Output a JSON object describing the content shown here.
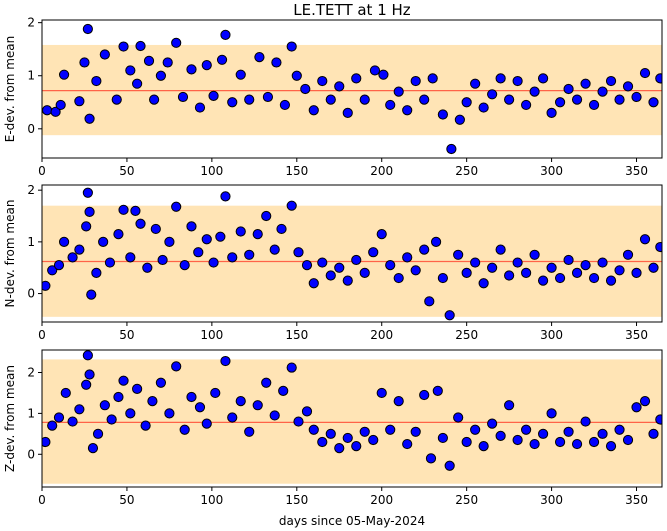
{
  "chart_data": {
    "type": "scatter",
    "title": "LE.TETT at 1 Hz",
    "xlabel": "days since 05-May-2024",
    "xlim": [
      0,
      365
    ],
    "x_ticks": [
      0,
      50,
      100,
      150,
      200,
      250,
      300,
      350
    ],
    "x_tick_labels": [
      "0",
      "50",
      "100",
      "150",
      "200",
      "250",
      "300",
      "350"
    ],
    "marker_color": "#0000ff",
    "marker_edge_color": "#000000",
    "band_color": "#ffe4b5",
    "mean_line_color": "#ff6347",
    "panels": [
      {
        "ylabel": "E-dev. from mean",
        "ylim": [
          -0.55,
          2.05
        ],
        "y_ticks": [
          0,
          1,
          2
        ],
        "y_tick_labels": [
          "0",
          "1",
          "2"
        ],
        "band": [
          -0.12,
          1.58
        ],
        "mean_line": 0.72,
        "points": [
          {
            "x": 27,
            "y": 1.88
          },
          {
            "x": 108,
            "y": 1.77
          },
          {
            "x": 147,
            "y": 1.55
          },
          {
            "x": 48,
            "y": 1.55
          },
          {
            "x": 58,
            "y": 1.56
          },
          {
            "x": 79,
            "y": 1.62
          },
          {
            "x": 241,
            "y": -0.38
          },
          {
            "x": 28,
            "y": 0.19
          },
          {
            "x": 246,
            "y": 0.17
          },
          {
            "x": 236,
            "y": 0.27
          },
          {
            "x": 3,
            "y": 0.35
          },
          {
            "x": 8,
            "y": 0.32
          },
          {
            "x": 11,
            "y": 0.45
          },
          {
            "x": 13,
            "y": 1.02
          },
          {
            "x": 22,
            "y": 0.52
          },
          {
            "x": 25,
            "y": 1.25
          },
          {
            "x": 32,
            "y": 0.9
          },
          {
            "x": 37,
            "y": 1.4
          },
          {
            "x": 44,
            "y": 0.55
          },
          {
            "x": 52,
            "y": 1.1
          },
          {
            "x": 56,
            "y": 0.85
          },
          {
            "x": 63,
            "y": 1.28
          },
          {
            "x": 66,
            "y": 0.55
          },
          {
            "x": 70,
            "y": 1.0
          },
          {
            "x": 74,
            "y": 1.25
          },
          {
            "x": 83,
            "y": 0.6
          },
          {
            "x": 88,
            "y": 1.12
          },
          {
            "x": 93,
            "y": 0.4
          },
          {
            "x": 97,
            "y": 1.2
          },
          {
            "x": 101,
            "y": 0.62
          },
          {
            "x": 106,
            "y": 1.3
          },
          {
            "x": 112,
            "y": 0.5
          },
          {
            "x": 117,
            "y": 1.02
          },
          {
            "x": 122,
            "y": 0.55
          },
          {
            "x": 128,
            "y": 1.35
          },
          {
            "x": 133,
            "y": 0.6
          },
          {
            "x": 138,
            "y": 1.25
          },
          {
            "x": 143,
            "y": 0.45
          },
          {
            "x": 150,
            "y": 1.0
          },
          {
            "x": 155,
            "y": 0.75
          },
          {
            "x": 160,
            "y": 0.35
          },
          {
            "x": 165,
            "y": 0.9
          },
          {
            "x": 170,
            "y": 0.55
          },
          {
            "x": 175,
            "y": 0.8
          },
          {
            "x": 180,
            "y": 0.3
          },
          {
            "x": 185,
            "y": 0.95
          },
          {
            "x": 190,
            "y": 0.55
          },
          {
            "x": 196,
            "y": 1.1
          },
          {
            "x": 201,
            "y": 1.02
          },
          {
            "x": 205,
            "y": 0.45
          },
          {
            "x": 210,
            "y": 0.7
          },
          {
            "x": 215,
            "y": 0.35
          },
          {
            "x": 220,
            "y": 0.9
          },
          {
            "x": 225,
            "y": 0.55
          },
          {
            "x": 230,
            "y": 0.95
          },
          {
            "x": 250,
            "y": 0.5
          },
          {
            "x": 255,
            "y": 0.85
          },
          {
            "x": 260,
            "y": 0.4
          },
          {
            "x": 265,
            "y": 0.65
          },
          {
            "x": 270,
            "y": 0.95
          },
          {
            "x": 275,
            "y": 0.55
          },
          {
            "x": 280,
            "y": 0.9
          },
          {
            "x": 285,
            "y": 0.45
          },
          {
            "x": 290,
            "y": 0.7
          },
          {
            "x": 295,
            "y": 0.95
          },
          {
            "x": 300,
            "y": 0.3
          },
          {
            "x": 305,
            "y": 0.5
          },
          {
            "x": 310,
            "y": 0.75
          },
          {
            "x": 315,
            "y": 0.55
          },
          {
            "x": 320,
            "y": 0.85
          },
          {
            "x": 325,
            "y": 0.45
          },
          {
            "x": 330,
            "y": 0.7
          },
          {
            "x": 335,
            "y": 0.9
          },
          {
            "x": 340,
            "y": 0.55
          },
          {
            "x": 345,
            "y": 0.8
          },
          {
            "x": 350,
            "y": 0.6
          },
          {
            "x": 355,
            "y": 1.05
          },
          {
            "x": 360,
            "y": 0.5
          },
          {
            "x": 364,
            "y": 0.95
          }
        ]
      },
      {
        "ylabel": "N-dev. from mean",
        "ylim": [
          -0.55,
          2.1
        ],
        "y_ticks": [
          0,
          1,
          2
        ],
        "y_tick_labels": [
          "0",
          "1",
          "2"
        ],
        "band": [
          -0.45,
          1.7
        ],
        "mean_line": 0.62,
        "points": [
          {
            "x": 27,
            "y": 1.95
          },
          {
            "x": 108,
            "y": 1.88
          },
          {
            "x": 147,
            "y": 1.7
          },
          {
            "x": 28,
            "y": 1.58
          },
          {
            "x": 48,
            "y": 1.62
          },
          {
            "x": 55,
            "y": 1.6
          },
          {
            "x": 79,
            "y": 1.68
          },
          {
            "x": 240,
            "y": -0.42
          },
          {
            "x": 29,
            "y": -0.02
          },
          {
            "x": 228,
            "y": -0.15
          },
          {
            "x": 2,
            "y": 0.15
          },
          {
            "x": 6,
            "y": 0.45
          },
          {
            "x": 10,
            "y": 0.55
          },
          {
            "x": 13,
            "y": 1.0
          },
          {
            "x": 18,
            "y": 0.7
          },
          {
            "x": 22,
            "y": 0.85
          },
          {
            "x": 26,
            "y": 1.3
          },
          {
            "x": 32,
            "y": 0.4
          },
          {
            "x": 36,
            "y": 1.0
          },
          {
            "x": 40,
            "y": 0.6
          },
          {
            "x": 45,
            "y": 1.15
          },
          {
            "x": 52,
            "y": 0.7
          },
          {
            "x": 58,
            "y": 1.35
          },
          {
            "x": 62,
            "y": 0.5
          },
          {
            "x": 67,
            "y": 1.25
          },
          {
            "x": 71,
            "y": 0.65
          },
          {
            "x": 75,
            "y": 1.0
          },
          {
            "x": 84,
            "y": 0.55
          },
          {
            "x": 88,
            "y": 1.3
          },
          {
            "x": 92,
            "y": 0.8
          },
          {
            "x": 97,
            "y": 1.05
          },
          {
            "x": 101,
            "y": 0.6
          },
          {
            "x": 105,
            "y": 1.1
          },
          {
            "x": 112,
            "y": 0.7
          },
          {
            "x": 117,
            "y": 1.2
          },
          {
            "x": 122,
            "y": 0.75
          },
          {
            "x": 127,
            "y": 1.15
          },
          {
            "x": 132,
            "y": 1.5
          },
          {
            "x": 137,
            "y": 0.85
          },
          {
            "x": 141,
            "y": 1.25
          },
          {
            "x": 151,
            "y": 0.8
          },
          {
            "x": 156,
            "y": 0.55
          },
          {
            "x": 160,
            "y": 0.2
          },
          {
            "x": 165,
            "y": 0.6
          },
          {
            "x": 170,
            "y": 0.35
          },
          {
            "x": 175,
            "y": 0.5
          },
          {
            "x": 180,
            "y": 0.25
          },
          {
            "x": 185,
            "y": 0.65
          },
          {
            "x": 190,
            "y": 0.4
          },
          {
            "x": 195,
            "y": 0.8
          },
          {
            "x": 200,
            "y": 1.15
          },
          {
            "x": 205,
            "y": 0.55
          },
          {
            "x": 210,
            "y": 0.3
          },
          {
            "x": 215,
            "y": 0.7
          },
          {
            "x": 220,
            "y": 0.45
          },
          {
            "x": 225,
            "y": 0.85
          },
          {
            "x": 232,
            "y": 1.0
          },
          {
            "x": 236,
            "y": 0.3
          },
          {
            "x": 245,
            "y": 0.75
          },
          {
            "x": 250,
            "y": 0.4
          },
          {
            "x": 255,
            "y": 0.6
          },
          {
            "x": 260,
            "y": 0.2
          },
          {
            "x": 265,
            "y": 0.5
          },
          {
            "x": 270,
            "y": 0.85
          },
          {
            "x": 275,
            "y": 0.35
          },
          {
            "x": 280,
            "y": 0.6
          },
          {
            "x": 285,
            "y": 0.4
          },
          {
            "x": 290,
            "y": 0.75
          },
          {
            "x": 295,
            "y": 0.25
          },
          {
            "x": 300,
            "y": 0.5
          },
          {
            "x": 305,
            "y": 0.3
          },
          {
            "x": 310,
            "y": 0.65
          },
          {
            "x": 315,
            "y": 0.4
          },
          {
            "x": 320,
            "y": 0.55
          },
          {
            "x": 325,
            "y": 0.3
          },
          {
            "x": 330,
            "y": 0.6
          },
          {
            "x": 335,
            "y": 0.25
          },
          {
            "x": 340,
            "y": 0.45
          },
          {
            "x": 345,
            "y": 0.75
          },
          {
            "x": 350,
            "y": 0.4
          },
          {
            "x": 355,
            "y": 1.05
          },
          {
            "x": 360,
            "y": 0.5
          },
          {
            "x": 364,
            "y": 0.9
          }
        ]
      },
      {
        "ylabel": "Z-dev. from mean",
        "ylim": [
          -0.8,
          2.55
        ],
        "y_ticks": [
          0,
          1,
          2
        ],
        "y_tick_labels": [
          "0",
          "1",
          "2"
        ],
        "band": [
          -0.72,
          2.32
        ],
        "mean_line": 0.78,
        "points": [
          {
            "x": 27,
            "y": 2.42
          },
          {
            "x": 108,
            "y": 2.28
          },
          {
            "x": 147,
            "y": 2.12
          },
          {
            "x": 79,
            "y": 2.15
          },
          {
            "x": 28,
            "y": 1.95
          },
          {
            "x": 48,
            "y": 1.8
          },
          {
            "x": 240,
            "y": -0.28
          },
          {
            "x": 229,
            "y": -0.1
          },
          {
            "x": 30,
            "y": 0.15
          },
          {
            "x": 2,
            "y": 0.3
          },
          {
            "x": 6,
            "y": 0.7
          },
          {
            "x": 10,
            "y": 0.9
          },
          {
            "x": 14,
            "y": 1.5
          },
          {
            "x": 18,
            "y": 0.8
          },
          {
            "x": 22,
            "y": 1.1
          },
          {
            "x": 26,
            "y": 1.7
          },
          {
            "x": 33,
            "y": 0.5
          },
          {
            "x": 37,
            "y": 1.2
          },
          {
            "x": 41,
            "y": 0.85
          },
          {
            "x": 45,
            "y": 1.4
          },
          {
            "x": 52,
            "y": 1.0
          },
          {
            "x": 56,
            "y": 1.6
          },
          {
            "x": 61,
            "y": 0.7
          },
          {
            "x": 65,
            "y": 1.3
          },
          {
            "x": 70,
            "y": 1.75
          },
          {
            "x": 75,
            "y": 1.0
          },
          {
            "x": 84,
            "y": 0.6
          },
          {
            "x": 88,
            "y": 1.4
          },
          {
            "x": 93,
            "y": 1.15
          },
          {
            "x": 97,
            "y": 0.75
          },
          {
            "x": 102,
            "y": 1.5
          },
          {
            "x": 112,
            "y": 0.9
          },
          {
            "x": 117,
            "y": 1.3
          },
          {
            "x": 122,
            "y": 0.55
          },
          {
            "x": 127,
            "y": 1.2
          },
          {
            "x": 132,
            "y": 1.75
          },
          {
            "x": 137,
            "y": 0.95
          },
          {
            "x": 142,
            "y": 1.55
          },
          {
            "x": 151,
            "y": 0.8
          },
          {
            "x": 156,
            "y": 1.05
          },
          {
            "x": 160,
            "y": 0.6
          },
          {
            "x": 165,
            "y": 0.3
          },
          {
            "x": 170,
            "y": 0.5
          },
          {
            "x": 175,
            "y": 0.15
          },
          {
            "x": 180,
            "y": 0.4
          },
          {
            "x": 185,
            "y": 0.2
          },
          {
            "x": 190,
            "y": 0.55
          },
          {
            "x": 195,
            "y": 0.35
          },
          {
            "x": 200,
            "y": 1.5
          },
          {
            "x": 205,
            "y": 0.6
          },
          {
            "x": 210,
            "y": 1.3
          },
          {
            "x": 215,
            "y": 0.25
          },
          {
            "x": 220,
            "y": 0.55
          },
          {
            "x": 225,
            "y": 1.45
          },
          {
            "x": 233,
            "y": 1.55
          },
          {
            "x": 236,
            "y": 0.4
          },
          {
            "x": 245,
            "y": 0.9
          },
          {
            "x": 250,
            "y": 0.3
          },
          {
            "x": 255,
            "y": 0.6
          },
          {
            "x": 260,
            "y": 0.2
          },
          {
            "x": 265,
            "y": 0.75
          },
          {
            "x": 270,
            "y": 0.45
          },
          {
            "x": 275,
            "y": 1.2
          },
          {
            "x": 280,
            "y": 0.35
          },
          {
            "x": 285,
            "y": 0.6
          },
          {
            "x": 290,
            "y": 0.25
          },
          {
            "x": 295,
            "y": 0.5
          },
          {
            "x": 300,
            "y": 1.0
          },
          {
            "x": 305,
            "y": 0.3
          },
          {
            "x": 310,
            "y": 0.55
          },
          {
            "x": 315,
            "y": 0.25
          },
          {
            "x": 320,
            "y": 0.8
          },
          {
            "x": 325,
            "y": 0.3
          },
          {
            "x": 330,
            "y": 0.5
          },
          {
            "x": 335,
            "y": 0.2
          },
          {
            "x": 340,
            "y": 0.6
          },
          {
            "x": 345,
            "y": 0.35
          },
          {
            "x": 350,
            "y": 1.15
          },
          {
            "x": 355,
            "y": 1.3
          },
          {
            "x": 360,
            "y": 0.5
          },
          {
            "x": 364,
            "y": 0.85
          }
        ]
      }
    ]
  }
}
